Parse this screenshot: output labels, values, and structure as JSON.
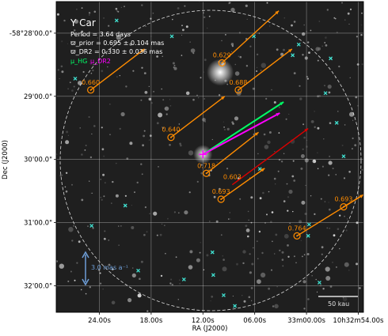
{
  "chart_data": {
    "type": "scatter",
    "object": "Y Car",
    "info_lines": [
      "Period =   3.64 days",
      "ϖ_prior = 0.695 ± 0.104 mas",
      "ϖ_DR2 = 0.330 ± 0.036 mas"
    ],
    "legend": [
      {
        "label": "μ_HG",
        "color": "#00ff66"
      },
      {
        "label": "μ_DR2",
        "color": "#ff00ff"
      }
    ],
    "xlabel": "RA (J2000)",
    "ylabel": "Dec (J2000)",
    "x_ticks": [
      "24.00s",
      "18.00s",
      "12.00s",
      "06.00s",
      "33m00.00s",
      "10h32m54.00s"
    ],
    "y_ticks": [
      "-58°28'00.0\"",
      "29'00.0\"",
      "30'00.0\"",
      "31'00.0\"",
      "32'00.0\""
    ],
    "scale_arrow_label": "3.0 mas a⁻¹",
    "scale_bar_label": "50 kau",
    "target_vectors": [
      {
        "name": "μ_HG",
        "color": "#00ff66",
        "dx": 2.55,
        "dy": 1.66
      },
      {
        "name": "μ_DR2",
        "color": "#ff00ff",
        "dx": 2.43,
        "dy": 1.31
      }
    ],
    "companions": [
      {
        "label": "0.660",
        "ra_s": 25.0,
        "dec_m": 0.9,
        "color": "#ff8c00",
        "dx": 1.7,
        "dy": 1.3,
        "circle": true
      },
      {
        "label": "0.629",
        "ra_s": 9.8,
        "dec_m": 0.47,
        "color": "#ff8c00",
        "dx": 1.8,
        "dy": 1.65,
        "circle": true
      },
      {
        "label": "0.688",
        "ra_s": 7.9,
        "dec_m": 0.9,
        "color": "#ff8c00",
        "dx": 1.7,
        "dy": 1.3,
        "circle": true
      },
      {
        "label": "0.640",
        "ra_s": 15.7,
        "dec_m": 1.65,
        "color": "#ff8c00",
        "dx": 1.7,
        "dy": 1.3,
        "circle": true
      },
      {
        "label": "0.718",
        "ra_s": 11.6,
        "dec_m": 2.22,
        "color": "#ff8c00",
        "dx": 1.65,
        "dy": 1.3,
        "circle": true
      },
      {
        "label": "0.603",
        "ra_s": 8.6,
        "dec_m": 2.4,
        "color": "#dd0000",
        "dx": 2.4,
        "dy": 1.78,
        "circle": false
      },
      {
        "label": "0.693",
        "ra_s": 9.9,
        "dec_m": 2.63,
        "color": "#ff8c00",
        "dx": 1.38,
        "dy": 0.98,
        "circle": true
      },
      {
        "label": "0.693",
        "ra_s": -4.3,
        "dec_m": 2.75,
        "color": "#ff8c00",
        "dx": 2.1,
        "dy": 1.3,
        "circle": true
      },
      {
        "label": "0.764",
        "ra_s": 1.1,
        "dec_m": 3.21,
        "color": "#ff8c00",
        "dx": 2.1,
        "dy": 1.3,
        "circle": true
      }
    ],
    "field_sources": [
      [
        15.6,
        0.05
      ],
      [
        22.0,
        -0.2
      ],
      [
        6.1,
        0.05
      ],
      [
        0.9,
        0.18
      ],
      [
        1.6,
        0.35
      ],
      [
        -2.8,
        0.4
      ],
      [
        26.8,
        0.72
      ],
      [
        30.6,
        1.81
      ],
      [
        24.9,
        3.05
      ],
      [
        21.0,
        2.73
      ],
      [
        19.5,
        3.76
      ],
      [
        14.2,
        3.9
      ],
      [
        10.9,
        3.47
      ],
      [
        5.4,
        2.15
      ],
      [
        -0.3,
        3.03
      ],
      [
        -0.2,
        3.21
      ],
      [
        -1.5,
        3.95
      ],
      [
        -4.3,
        1.95
      ],
      [
        -2.2,
        0.95
      ],
      [
        -3.5,
        1.42
      ],
      [
        8.3,
        4.32
      ],
      [
        9.6,
        4.15
      ],
      [
        10.8,
        3.83
      ]
    ],
    "target": {
      "ra_s": 12.0,
      "dec_m": 1.92
    },
    "bright_star": {
      "ra_s": 10.0,
      "dec_m": 0.62
    },
    "xlim_s": [
      29.0,
      -6.6
    ],
    "ylim_m": [
      -0.5,
      4.42
    ],
    "grid": true
  }
}
